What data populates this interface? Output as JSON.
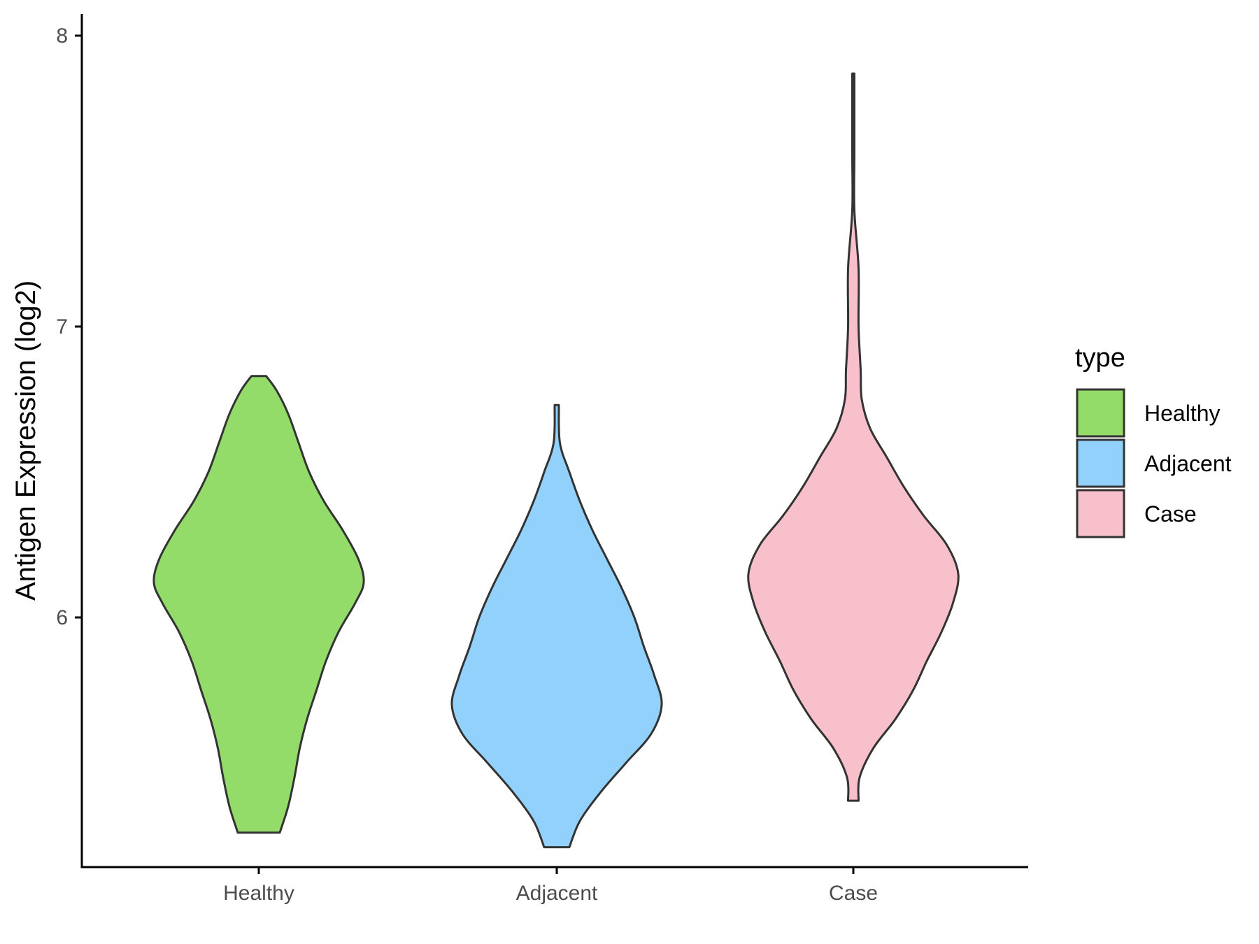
{
  "chart_data": {
    "type": "violin",
    "categories": [
      "Healthy",
      "Adjacent",
      "Case"
    ],
    "ylabel": "Antigen Expression (log2)",
    "xlabel": "",
    "ylim": [
      5.1,
      8.0
    ],
    "yticks": [
      6,
      7,
      8
    ],
    "legend": {
      "title": "type",
      "placement": "right",
      "items": [
        {
          "label": "Healthy",
          "color": "#93DC6A"
        },
        {
          "label": "Adjacent",
          "color": "#93D1FD"
        },
        {
          "label": "Case",
          "color": "#F7C0CB"
        }
      ]
    },
    "series": [
      {
        "category": "Healthy",
        "color": "#93DC6A",
        "min": 5.26,
        "max": 6.83,
        "density": [
          [
            5.26,
            0.2
          ],
          [
            5.35,
            0.28
          ],
          [
            5.45,
            0.34
          ],
          [
            5.55,
            0.39
          ],
          [
            5.65,
            0.46
          ],
          [
            5.75,
            0.55
          ],
          [
            5.85,
            0.64
          ],
          [
            5.95,
            0.76
          ],
          [
            6.05,
            0.92
          ],
          [
            6.12,
            1.0
          ],
          [
            6.2,
            0.95
          ],
          [
            6.3,
            0.8
          ],
          [
            6.4,
            0.62
          ],
          [
            6.5,
            0.48
          ],
          [
            6.6,
            0.38
          ],
          [
            6.7,
            0.28
          ],
          [
            6.78,
            0.17
          ],
          [
            6.83,
            0.07
          ]
        ]
      },
      {
        "category": "Adjacent",
        "color": "#93D1FD",
        "min": 5.21,
        "max": 6.73,
        "density": [
          [
            5.21,
            0.12
          ],
          [
            5.3,
            0.22
          ],
          [
            5.4,
            0.42
          ],
          [
            5.5,
            0.66
          ],
          [
            5.6,
            0.9
          ],
          [
            5.7,
            1.0
          ],
          [
            5.8,
            0.93
          ],
          [
            5.9,
            0.83
          ],
          [
            6.0,
            0.74
          ],
          [
            6.1,
            0.62
          ],
          [
            6.2,
            0.48
          ],
          [
            6.3,
            0.34
          ],
          [
            6.4,
            0.22
          ],
          [
            6.5,
            0.12
          ],
          [
            6.6,
            0.03
          ],
          [
            6.73,
            0.02
          ]
        ]
      },
      {
        "category": "Case",
        "color": "#F7C0CB",
        "min": 5.37,
        "max": 7.87,
        "density": [
          [
            5.37,
            0.05
          ],
          [
            5.45,
            0.06
          ],
          [
            5.55,
            0.19
          ],
          [
            5.65,
            0.4
          ],
          [
            5.75,
            0.57
          ],
          [
            5.85,
            0.7
          ],
          [
            5.95,
            0.84
          ],
          [
            6.05,
            0.95
          ],
          [
            6.15,
            1.0
          ],
          [
            6.25,
            0.89
          ],
          [
            6.35,
            0.67
          ],
          [
            6.45,
            0.48
          ],
          [
            6.55,
            0.32
          ],
          [
            6.65,
            0.16
          ],
          [
            6.75,
            0.08
          ],
          [
            6.85,
            0.07
          ],
          [
            7.0,
            0.05
          ],
          [
            7.2,
            0.05
          ],
          [
            7.4,
            0.01
          ],
          [
            7.6,
            0.01
          ],
          [
            7.87,
            0.01
          ]
        ]
      }
    ]
  }
}
